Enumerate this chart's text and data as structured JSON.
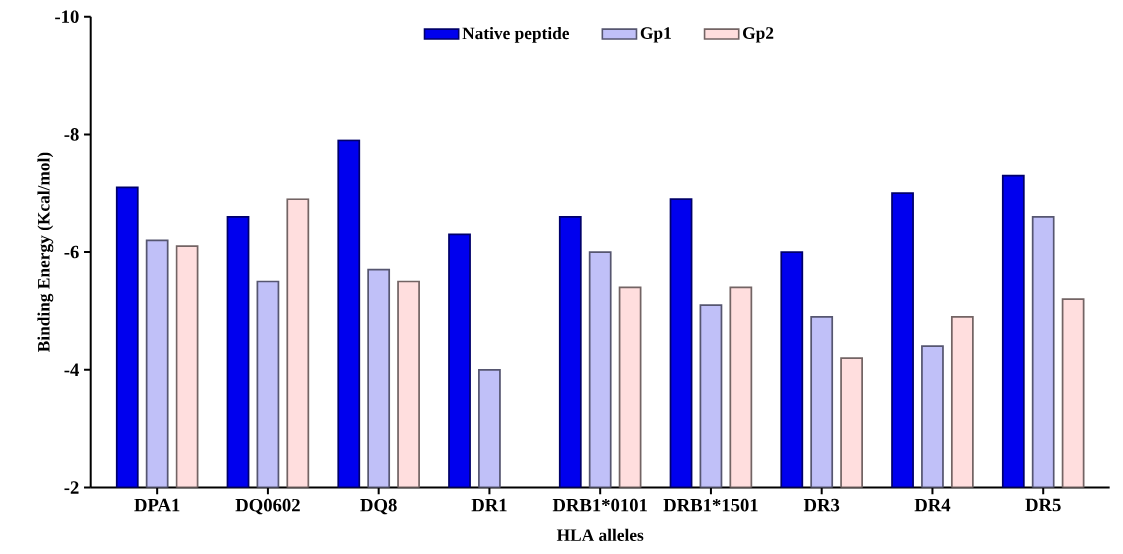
{
  "chart_data": {
    "type": "bar",
    "xlabel": "HLA alleles",
    "ylabel": "Binding Energy (Kcal/mol)",
    "categories": [
      "DPA1",
      "DQ0602",
      "DQ8",
      "DR1",
      "DRB1*0101",
      "DRB1*1501",
      "DR3",
      "DR4",
      "DR5"
    ],
    "series": [
      {
        "name": "Native peptide",
        "color": "#0000ee",
        "values": [
          -7.1,
          -6.6,
          -7.9,
          -6.3,
          -6.6,
          -6.9,
          -6.0,
          -7.0,
          -7.3
        ]
      },
      {
        "name": "Gp1",
        "color": "#c0c0f8",
        "values": [
          -6.2,
          -5.5,
          -5.7,
          -4.0,
          -6.0,
          -5.1,
          -4.9,
          -4.4,
          -6.6
        ]
      },
      {
        "name": "Gp2",
        "color": "#ffdede",
        "values": [
          -6.1,
          -6.9,
          -5.5,
          null,
          -5.4,
          -5.4,
          -4.2,
          -4.9,
          -5.2
        ]
      }
    ],
    "ylim": [
      -2,
      -10
    ],
    "yticks": [
      -2,
      -4,
      -6,
      -8,
      -10
    ],
    "grid": false,
    "legend": "top"
  }
}
